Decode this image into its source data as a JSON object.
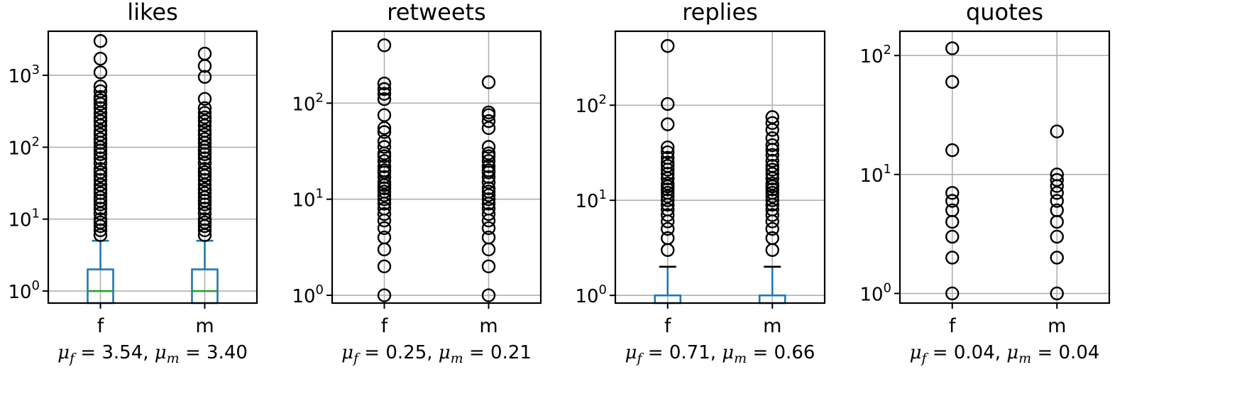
{
  "chart_data": [
    {
      "type": "box",
      "title": "likes",
      "yscale": "log",
      "ylim": [
        0.68,
        4100
      ],
      "yticks": [
        {
          "value": 1,
          "label": "10",
          "exp": "0"
        },
        {
          "value": 10,
          "label": "10",
          "exp": "1"
        },
        {
          "value": 100,
          "label": "10",
          "exp": "2"
        },
        {
          "value": 1000,
          "label": "10",
          "exp": "3"
        }
      ],
      "categories": [
        "f",
        "m"
      ],
      "grid": true,
      "mean_label": {
        "f_sym": "μ",
        "f_sub": "f",
        "f_val": " = 3.54, ",
        "m_sym": "μ",
        "m_sub": "m",
        "m_val": " = 3.40"
      },
      "boxes": [
        {
          "category": "f",
          "q1": 0.68,
          "median": 1,
          "q3": 2,
          "whisker_low": 0.68,
          "whisker_high": 5,
          "outliers": [
            6,
            7,
            8,
            9,
            10,
            12,
            14,
            16,
            18,
            20,
            23,
            26,
            30,
            35,
            40,
            45,
            50,
            60,
            70,
            80,
            90,
            100,
            115,
            130,
            150,
            170,
            200,
            230,
            260,
            300,
            350,
            400,
            450,
            500,
            600,
            700,
            1100,
            1700,
            3000
          ]
        },
        {
          "category": "m",
          "q1": 0.68,
          "median": 1,
          "q3": 2,
          "whisker_low": 0.68,
          "whisker_high": 5,
          "outliers": [
            6,
            7,
            8,
            9,
            10,
            12,
            14,
            16,
            18,
            20,
            23,
            26,
            30,
            35,
            40,
            45,
            50,
            60,
            70,
            80,
            90,
            100,
            115,
            130,
            150,
            170,
            200,
            230,
            260,
            300,
            350,
            470,
            950,
            1350,
            2000
          ]
        }
      ]
    },
    {
      "type": "box",
      "title": "retweets",
      "yscale": "log",
      "ylim": [
        0.83,
        560
      ],
      "yticks": [
        {
          "value": 1,
          "label": "10",
          "exp": "0"
        },
        {
          "value": 10,
          "label": "10",
          "exp": "1"
        },
        {
          "value": 100,
          "label": "10",
          "exp": "2"
        }
      ],
      "categories": [
        "f",
        "m"
      ],
      "grid": true,
      "mean_label": {
        "f_sym": "μ",
        "f_sub": "f",
        "f_val": " = 0.25, ",
        "m_sym": "μ",
        "m_sub": "m",
        "m_val": " = 0.21"
      },
      "boxes": [
        {
          "category": "f",
          "outliers": [
            1,
            2,
            3,
            4,
            5,
            6,
            7,
            8,
            9,
            10,
            11,
            12,
            13,
            14,
            15,
            17,
            19,
            20,
            22,
            25,
            28,
            30,
            35,
            40,
            50,
            55,
            75,
            110,
            125,
            140,
            160,
            400
          ]
        },
        {
          "category": "m",
          "outliers": [
            1,
            2,
            3,
            4,
            5,
            6,
            7,
            8,
            9,
            10,
            11,
            12,
            13,
            15,
            17,
            19,
            20,
            22,
            25,
            28,
            30,
            35,
            55,
            65,
            75,
            80,
            165
          ]
        }
      ]
    },
    {
      "type": "box",
      "title": "replies",
      "yscale": "log",
      "ylim": [
        0.83,
        600
      ],
      "yticks": [
        {
          "value": 1,
          "label": "10",
          "exp": "0"
        },
        {
          "value": 10,
          "label": "10",
          "exp": "1"
        },
        {
          "value": 100,
          "label": "10",
          "exp": "2"
        }
      ],
      "categories": [
        "f",
        "m"
      ],
      "grid": true,
      "mean_label": {
        "f_sym": "μ",
        "f_sub": "f",
        "f_val": " = 0.71, ",
        "m_sym": "μ",
        "m_sub": "m",
        "m_val": " = 0.66"
      },
      "boxes": [
        {
          "category": "f",
          "q1": 0.83,
          "median": 0.83,
          "q3": 1,
          "whisker_low": 0.83,
          "whisker_high": 2,
          "outliers": [
            3,
            4,
            5,
            6,
            7,
            8,
            9,
            10,
            11,
            12,
            13,
            14,
            15,
            17,
            19,
            21,
            23,
            25,
            28,
            32,
            36,
            63,
            103,
            420
          ]
        },
        {
          "category": "m",
          "q1": 0.83,
          "median": 0.83,
          "q3": 1,
          "whisker_low": 0.83,
          "whisker_high": 2,
          "outliers": [
            3,
            4,
            5,
            6,
            7,
            8,
            9,
            10,
            11,
            12,
            13,
            14,
            15,
            17,
            19,
            21,
            23,
            26,
            30,
            34,
            38,
            45,
            55,
            65,
            75
          ]
        }
      ]
    },
    {
      "type": "box",
      "title": "quotes",
      "yscale": "log",
      "ylim": [
        0.83,
        160
      ],
      "yticks": [
        {
          "value": 1,
          "label": "10",
          "exp": "0"
        },
        {
          "value": 10,
          "label": "10",
          "exp": "1"
        },
        {
          "value": 100,
          "label": "10",
          "exp": "2"
        }
      ],
      "categories": [
        "f",
        "m"
      ],
      "grid": true,
      "mean_label": {
        "f_sym": "μ",
        "f_sub": "f",
        "f_val": " = 0.04, ",
        "m_sym": "μ",
        "m_sub": "m",
        "m_val": " = 0.04"
      },
      "boxes": [
        {
          "category": "f",
          "outliers": [
            1,
            2,
            3,
            4,
            5,
            6,
            7,
            16,
            60,
            115
          ]
        },
        {
          "category": "m",
          "outliers": [
            1,
            2,
            3,
            4,
            5,
            6,
            7,
            8,
            9,
            10,
            23
          ]
        }
      ]
    }
  ],
  "colors": {
    "box": "#1f77b4",
    "median": "#2ca02c",
    "grid": "#b0b0b0",
    "flier": "#000000",
    "axes": "#000000"
  }
}
